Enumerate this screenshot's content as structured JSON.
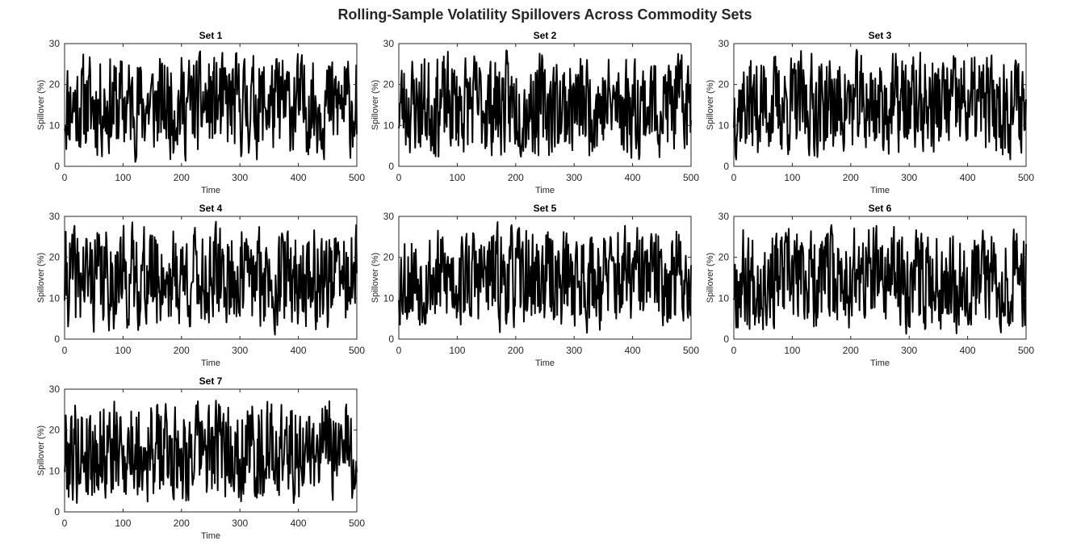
{
  "figure_title": "Rolling-Sample Volatility Spillovers Across Commodity Sets",
  "chart_data": [
    {
      "type": "line",
      "title": "Set 1",
      "xlabel": "Time",
      "ylabel": "Spillover (%)",
      "xlim": [
        0,
        500
      ],
      "ylim": [
        0,
        30
      ],
      "xticks": [
        0,
        100,
        200,
        300,
        400,
        500
      ],
      "yticks": [
        0,
        10,
        20,
        30
      ],
      "grid": false,
      "color": "#000000",
      "series": [
        {
          "seed": 11,
          "n": 500
        }
      ]
    },
    {
      "type": "line",
      "title": "Set 2",
      "xlabel": "Time",
      "ylabel": "Spillover (%)",
      "xlim": [
        0,
        500
      ],
      "ylim": [
        0,
        30
      ],
      "xticks": [
        0,
        100,
        200,
        300,
        400,
        500
      ],
      "yticks": [
        0,
        10,
        20,
        30
      ],
      "grid": false,
      "color": "#000000",
      "series": [
        {
          "seed": 23,
          "n": 500
        }
      ]
    },
    {
      "type": "line",
      "title": "Set 3",
      "xlabel": "Time",
      "ylabel": "Spillover (%)",
      "xlim": [
        0,
        500
      ],
      "ylim": [
        0,
        30
      ],
      "xticks": [
        0,
        100,
        200,
        300,
        400,
        500
      ],
      "yticks": [
        0,
        10,
        20,
        30
      ],
      "grid": false,
      "color": "#000000",
      "series": [
        {
          "seed": 37,
          "n": 500
        }
      ]
    },
    {
      "type": "line",
      "title": "Set 4",
      "xlabel": "Time",
      "ylabel": "Spillover (%)",
      "xlim": [
        0,
        500
      ],
      "ylim": [
        0,
        30
      ],
      "xticks": [
        0,
        100,
        200,
        300,
        400,
        500
      ],
      "yticks": [
        0,
        10,
        20,
        30
      ],
      "grid": false,
      "color": "#000000",
      "series": [
        {
          "seed": 41,
          "n": 500
        }
      ]
    },
    {
      "type": "line",
      "title": "Set 5",
      "xlabel": "Time",
      "ylabel": "Spillover (%)",
      "xlim": [
        0,
        500
      ],
      "ylim": [
        0,
        30
      ],
      "xticks": [
        0,
        100,
        200,
        300,
        400,
        500
      ],
      "yticks": [
        0,
        10,
        20,
        30
      ],
      "grid": false,
      "color": "#000000",
      "series": [
        {
          "seed": 53,
          "n": 500
        }
      ]
    },
    {
      "type": "line",
      "title": "Set 6",
      "xlabel": "Time",
      "ylabel": "Spillover (%)",
      "xlim": [
        0,
        500
      ],
      "ylim": [
        0,
        30
      ],
      "xticks": [
        0,
        100,
        200,
        300,
        400,
        500
      ],
      "yticks": [
        0,
        10,
        20,
        30
      ],
      "grid": false,
      "color": "#000000",
      "series": [
        {
          "seed": 67,
          "n": 500
        }
      ]
    },
    {
      "type": "line",
      "title": "Set 7",
      "xlabel": "Time",
      "ylabel": "Spillover (%)",
      "xlim": [
        0,
        500
      ],
      "ylim": [
        0,
        30
      ],
      "xticks": [
        0,
        100,
        200,
        300,
        400,
        500
      ],
      "yticks": [
        0,
        10,
        20,
        30
      ],
      "grid": false,
      "color": "#000000",
      "series": [
        {
          "seed": 79,
          "n": 500
        }
      ]
    }
  ]
}
